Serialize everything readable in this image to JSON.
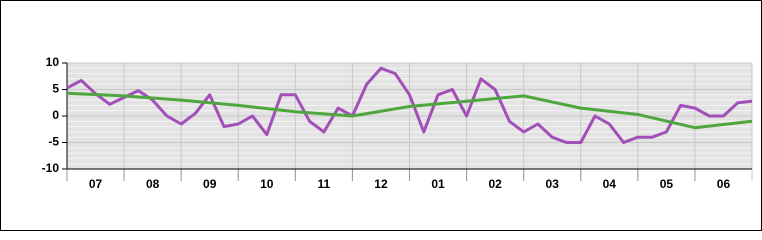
{
  "chart_data": {
    "type": "line",
    "xlim": [
      0,
      12
    ],
    "xticks": [
      {
        "value": 0.5,
        "label": "07"
      },
      {
        "value": 1.5,
        "label": "08"
      },
      {
        "value": 2.5,
        "label": "09"
      },
      {
        "value": 3.5,
        "label": "10"
      },
      {
        "value": 4.5,
        "label": "11"
      },
      {
        "value": 5.5,
        "label": "12"
      },
      {
        "value": 6.5,
        "label": "01"
      },
      {
        "value": 7.5,
        "label": "02"
      },
      {
        "value": 8.5,
        "label": "03"
      },
      {
        "value": 9.5,
        "label": "04"
      },
      {
        "value": 10.5,
        "label": "05"
      },
      {
        "value": 11.5,
        "label": "06"
      }
    ],
    "ylim": [
      -10,
      10
    ],
    "yticks": [
      -10,
      -5,
      0,
      5,
      10
    ],
    "grid": true,
    "series": [
      {
        "color": "#a24fb9",
        "x": [
          0,
          0.25,
          0.5,
          0.75,
          1,
          1.25,
          1.5,
          1.75,
          2,
          2.25,
          2.5,
          2.75,
          3,
          3.25,
          3.5,
          3.75,
          4,
          4.25,
          4.5,
          4.75,
          5,
          5.25,
          5.5,
          5.75,
          6,
          6.25,
          6.5,
          6.75,
          7,
          7.25,
          7.5,
          7.75,
          8,
          8.25,
          8.5,
          8.75,
          9,
          9.25,
          9.5,
          9.75,
          10,
          10.25,
          10.5,
          10.75,
          11,
          11.25,
          11.5,
          11.75,
          12
        ],
        "values": [
          5.3,
          6.7,
          4.2,
          2.2,
          3.5,
          4.8,
          3,
          0,
          -1.5,
          0.5,
          4,
          -2,
          -1.5,
          0,
          -3.5,
          4,
          4,
          -1,
          -3,
          1.5,
          0,
          6,
          9,
          8,
          4,
          -3,
          4,
          5,
          0,
          7,
          5,
          -1,
          -3,
          -1.5,
          -4,
          -5,
          -5,
          0,
          -1.5,
          -5,
          -4,
          -4,
          -3,
          2,
          1.5,
          0,
          0,
          2.5,
          2.8
        ]
      },
      {
        "color": "#4ea73e",
        "x": [
          0,
          1,
          2,
          3,
          4,
          5,
          6,
          7,
          8,
          9,
          10,
          11,
          12
        ],
        "values": [
          4.3,
          3.8,
          3,
          2,
          0.8,
          0,
          1.8,
          2.8,
          3.8,
          1.5,
          0.3,
          -2.2,
          -1
        ]
      }
    ]
  }
}
